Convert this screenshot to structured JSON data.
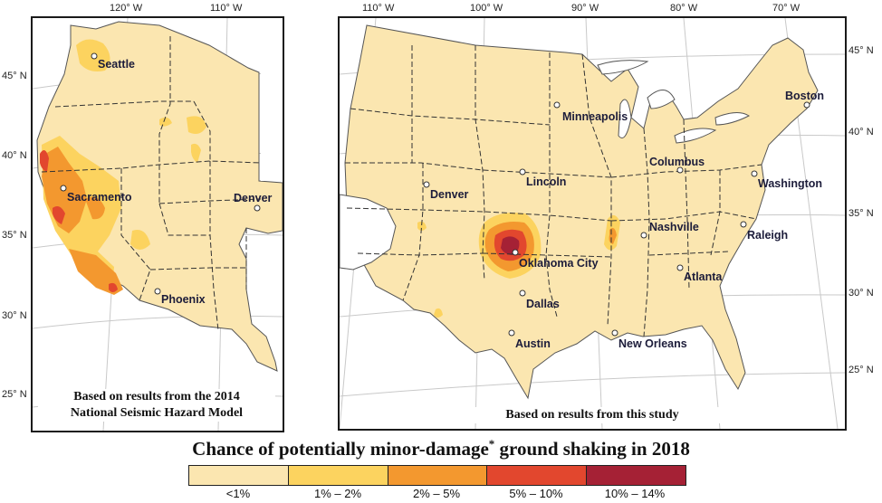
{
  "title": {
    "main": "Chance of potentially minor-damage",
    "asterisk": "*",
    "tail": " ground shaking in 2018"
  },
  "legend": [
    {
      "label": "<1%",
      "color": "#fbe6b0"
    },
    {
      "label": "1% – 2%",
      "color": "#fcd35f"
    },
    {
      "label": "2% – 5%",
      "color": "#f3982f"
    },
    {
      "label": "5% – 10%",
      "color": "#e2472e"
    },
    {
      "label": "10% – 14%",
      "color": "#a52135"
    }
  ],
  "left_map": {
    "caption_line1": "Based on results from the 2014",
    "caption_line2": "National Seismic Hazard Model",
    "lon_ticks": [
      "120° W",
      "110° W"
    ],
    "lat_ticks": [
      "45° N",
      "40° N",
      "35° N",
      "30° N",
      "25° N"
    ],
    "cities": [
      "Seattle",
      "Sacramento",
      "Denver",
      "Phoenix"
    ]
  },
  "right_map": {
    "caption": "Based on results from this study",
    "lon_ticks": [
      "110° W",
      "100° W",
      "90° W",
      "80° W",
      "70° W"
    ],
    "lat_ticks": [
      "45° N",
      "40° N",
      "35° N",
      "30° N",
      "25° N"
    ],
    "cities": [
      "Minneapolis",
      "Boston",
      "Columbus",
      "Lincoln",
      "Denver",
      "Washington",
      "Nashville",
      "Raleigh",
      "Oklahoma City",
      "Atlanta",
      "Dallas",
      "Austin",
      "New Orleans"
    ]
  }
}
